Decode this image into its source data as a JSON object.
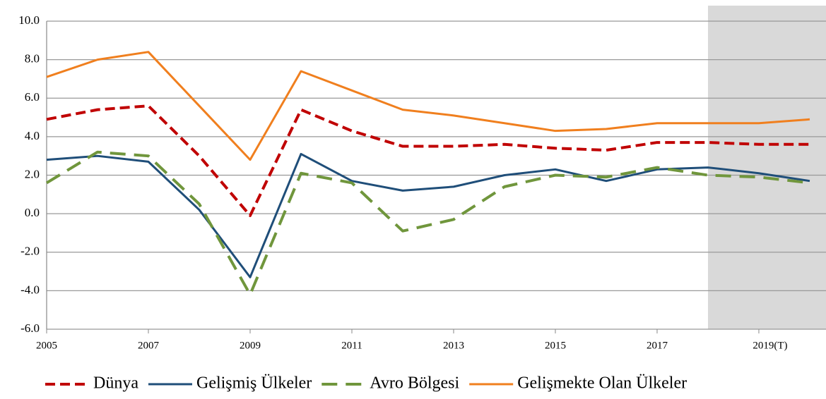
{
  "chart_data": {
    "type": "line",
    "x": [
      2005,
      2006,
      2007,
      2008,
      2009,
      2010,
      2011,
      2012,
      2013,
      2014,
      2015,
      2016,
      2017,
      2018,
      2019,
      2020
    ],
    "series": [
      {
        "name": "Dünya",
        "color": "#c00000",
        "dash": "14,7",
        "width": 4,
        "values": [
          4.9,
          5.4,
          5.6,
          3.0,
          -0.1,
          5.4,
          4.3,
          3.5,
          3.5,
          3.6,
          3.4,
          3.3,
          3.7,
          3.7,
          3.6,
          3.6
        ]
      },
      {
        "name": "Gelişmiş Ülkeler",
        "color": "#1f4e79",
        "dash": "none",
        "width": 3,
        "values": [
          2.8,
          3.0,
          2.7,
          0.2,
          -3.3,
          3.1,
          1.7,
          1.2,
          1.4,
          2.0,
          2.3,
          1.7,
          2.3,
          2.4,
          2.1,
          1.7
        ]
      },
      {
        "name": "Avro Bölgesi",
        "color": "#70963c",
        "dash": "22,12",
        "width": 4,
        "values": [
          1.6,
          3.2,
          3.0,
          0.5,
          -4.2,
          2.1,
          1.6,
          -0.9,
          -0.3,
          1.4,
          2.0,
          1.9,
          2.4,
          2.0,
          1.9,
          1.6
        ]
      },
      {
        "name": "Gelişmekte Olan Ülkeler",
        "color": "#f07f1e",
        "dash": "none",
        "width": 3,
        "values": [
          7.1,
          8.0,
          8.4,
          5.6,
          2.8,
          7.4,
          6.4,
          5.4,
          5.1,
          4.7,
          4.3,
          4.4,
          4.7,
          4.7,
          4.7,
          4.9
        ]
      }
    ],
    "xlim": [
      2005,
      2020.32
    ],
    "xticks": [
      2005,
      2007,
      2009,
      2011,
      2013,
      2015,
      2017,
      {
        "value": 2019,
        "label": "2019(T)"
      }
    ],
    "ylim": [
      -6,
      10
    ],
    "yticks": [
      {
        "value": -6,
        "label": "-6.0"
      },
      {
        "value": -4,
        "label": "-4.0"
      },
      {
        "value": -2,
        "label": "-2.0"
      },
      {
        "value": 0,
        "label": "0.0"
      },
      {
        "value": 2,
        "label": "2.0"
      },
      {
        "value": 4,
        "label": "4.0"
      },
      {
        "value": 6,
        "label": "6.0"
      },
      {
        "value": 8,
        "label": "8.0"
      },
      {
        "value": 10,
        "label": "10.0"
      }
    ],
    "shaded_xrange": [
      2018,
      2020.32
    ],
    "grid": true,
    "legend": "bottom"
  }
}
